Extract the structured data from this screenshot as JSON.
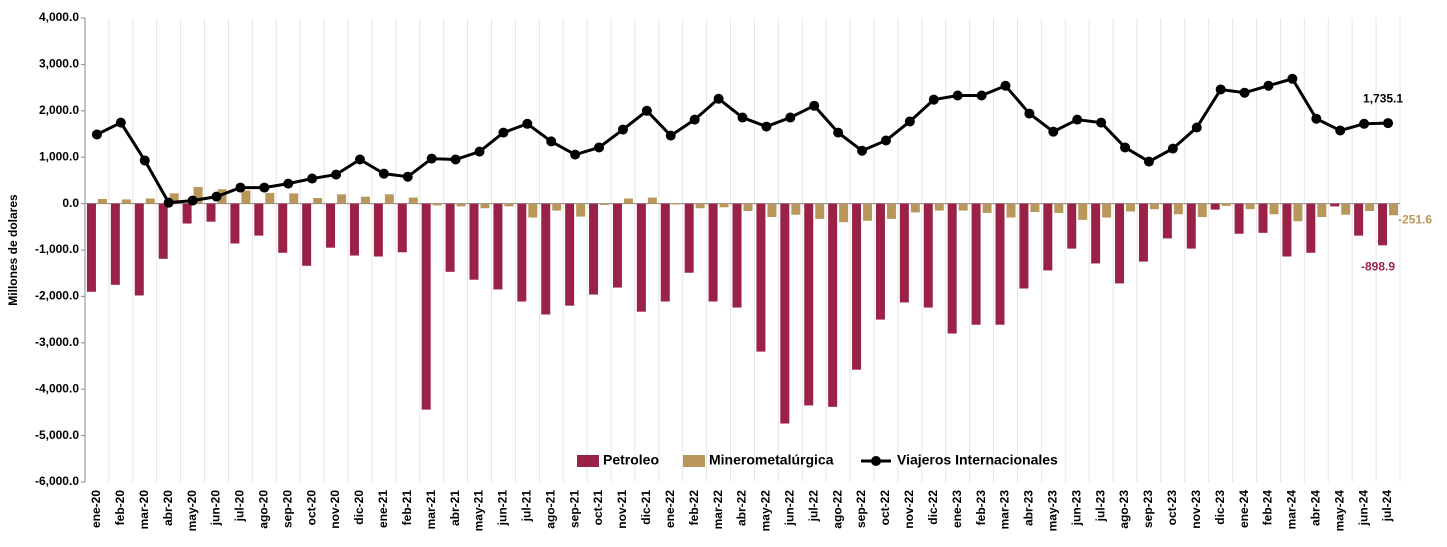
{
  "chart_data": {
    "type": "bar_line",
    "y_label": "Millones de dolares",
    "categories": [
      "ene-20",
      "feb-20",
      "mar-20",
      "abr-20",
      "may-20",
      "jun-20",
      "jul-20",
      "ago-20",
      "sep-20",
      "oct-20",
      "nov-20",
      "dic-20",
      "ene-21",
      "feb-21",
      "mar-21",
      "abr-21",
      "may-21",
      "jun-21",
      "jul-21",
      "ago-21",
      "sep-21",
      "oct-21",
      "nov-21",
      "dic-21",
      "ene-22",
      "feb-22",
      "mar-22",
      "abr-22",
      "may-22",
      "jun-22",
      "jul-22",
      "ago-22",
      "sep-22",
      "oct-22",
      "nov-22",
      "dic-22",
      "ene-23",
      "feb-23",
      "mar-23",
      "abr-23",
      "may-23",
      "jun-23",
      "jul-23",
      "ago-23",
      "sep-23",
      "oct-23",
      "nov-23",
      "dic-23",
      "ene-24",
      "feb-24",
      "mar-24",
      "abr-24",
      "may-24",
      "jun-24",
      "jul-24"
    ],
    "series": [
      {
        "name": "Petroleo",
        "kind": "bar",
        "color": "#9b2247",
        "values": [
          -1900,
          -1750,
          -1980,
          -1190,
          -430,
          -390,
          -860,
          -690,
          -1060,
          -1340,
          -950,
          -1120,
          -1140,
          -1050,
          -4440,
          -1470,
          -1640,
          -1850,
          -2110,
          -2390,
          -2200,
          -1960,
          -1810,
          -2330,
          -2110,
          -1490,
          -2110,
          -2240,
          -3190,
          -4740,
          -4350,
          -4380,
          -3580,
          -2500,
          -2130,
          -2240,
          -2800,
          -2610,
          -2610,
          -1830,
          -1440,
          -970,
          -1290,
          -1720,
          -1250,
          -750,
          -970,
          -130,
          -650,
          -630,
          -1140,
          -1060,
          -60,
          -690,
          -898.9
        ],
        "value_labels": [
          null,
          null,
          null,
          null,
          null,
          null,
          null,
          null,
          null,
          null,
          null,
          null,
          null,
          null,
          null,
          null,
          null,
          null,
          null,
          null,
          null,
          null,
          null,
          null,
          null,
          null,
          null,
          null,
          null,
          null,
          null,
          null,
          null,
          null,
          null,
          null,
          null,
          null,
          null,
          null,
          null,
          null,
          null,
          null,
          null,
          null,
          null,
          null,
          null,
          null,
          null,
          null,
          null,
          null,
          "-898.9"
        ]
      },
      {
        "name": "Minerometalúrgica",
        "kind": "bar",
        "color": "#b9975b",
        "values": [
          100,
          90,
          110,
          220,
          360,
          310,
          280,
          230,
          220,
          120,
          200,
          150,
          200,
          130,
          -40,
          -60,
          -100,
          -60,
          -300,
          -150,
          -280,
          -30,
          110,
          130,
          -20,
          -100,
          -80,
          -160,
          -290,
          -240,
          -330,
          -400,
          -370,
          -330,
          -190,
          -150,
          -150,
          -200,
          -300,
          -180,
          -200,
          -350,
          -300,
          -170,
          -120,
          -230,
          -290,
          -50,
          -120,
          -230,
          -380,
          -290,
          -240,
          -160,
          -251.6
        ],
        "value_labels": [
          null,
          null,
          null,
          null,
          null,
          null,
          null,
          null,
          null,
          null,
          null,
          null,
          null,
          null,
          null,
          null,
          null,
          null,
          null,
          null,
          null,
          null,
          null,
          null,
          null,
          null,
          null,
          null,
          null,
          null,
          null,
          null,
          null,
          null,
          null,
          null,
          null,
          null,
          null,
          null,
          null,
          null,
          null,
          null,
          null,
          null,
          null,
          null,
          null,
          null,
          null,
          null,
          null,
          null,
          "-251.6"
        ]
      },
      {
        "name": "Viajeros Internacionales",
        "kind": "line",
        "color": "#000000",
        "values": [
          1490,
          1745,
          930,
          20,
          65,
          150,
          345,
          345,
          430,
          540,
          625,
          950,
          645,
          580,
          970,
          950,
          1120,
          1530,
          1720,
          1340,
          1055,
          1210,
          1595,
          2000,
          1465,
          1810,
          2260,
          1855,
          1660,
          1855,
          2110,
          1530,
          1140,
          1360,
          1770,
          2240,
          2330,
          2330,
          2540,
          1940,
          1550,
          1810,
          1745,
          1210,
          905,
          1185,
          1640,
          2460,
          2390,
          2540,
          2690,
          1830,
          1575,
          1720,
          1735.1
        ],
        "value_labels": [
          null,
          null,
          null,
          null,
          null,
          null,
          null,
          null,
          null,
          null,
          null,
          null,
          null,
          null,
          null,
          null,
          null,
          null,
          null,
          null,
          null,
          null,
          null,
          null,
          null,
          null,
          null,
          null,
          null,
          null,
          null,
          null,
          null,
          null,
          null,
          null,
          null,
          null,
          null,
          null,
          null,
          null,
          null,
          null,
          null,
          null,
          null,
          null,
          null,
          null,
          null,
          null,
          null,
          null,
          "1,735.1"
        ]
      }
    ],
    "ylim": [
      -6000,
      4000
    ],
    "yticks": [
      {
        "value": 4000,
        "label": "4,000.0"
      },
      {
        "value": 3000,
        "label": "3,000.0"
      },
      {
        "value": 2000,
        "label": "2,000.0"
      },
      {
        "value": 1000,
        "label": "1,000.0"
      },
      {
        "value": 0,
        "label": "0.0"
      },
      {
        "value": -1000,
        "label": "-1,000.0"
      },
      {
        "value": -2000,
        "label": "-2,000.0"
      },
      {
        "value": -3000,
        "label": "-3,000.0"
      },
      {
        "value": -4000,
        "label": "-4,000.0"
      },
      {
        "value": -5000,
        "label": "-5,000.0"
      },
      {
        "value": -6000,
        "label": "-6,000.0"
      }
    ],
    "legend": "bottom"
  }
}
